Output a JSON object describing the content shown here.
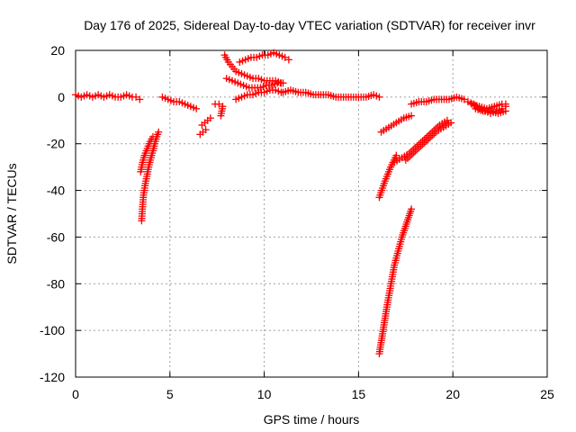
{
  "chart_data": {
    "type": "scatter",
    "title": "Day 176 of 2025, Sidereal Day-to-day VTEC variation (SDTVAR) for receiver invr",
    "xlabel": "GPS time / hours",
    "ylabel": "SDTVAR / TECUs",
    "xlim": [
      0,
      25
    ],
    "ylim": [
      -120,
      20
    ],
    "x_ticks": [
      0,
      5,
      10,
      15,
      20,
      25
    ],
    "x_tick_labels": [
      "0",
      "5",
      "10",
      "15",
      "20",
      "25"
    ],
    "y_ticks": [
      -120,
      -100,
      -80,
      -60,
      -40,
      -20,
      0,
      20
    ],
    "y_tick_labels": [
      "-120",
      "-100",
      "-80",
      "-60",
      "-40",
      "-20",
      "0",
      "20"
    ],
    "grid": true,
    "legend": "none",
    "marker": "plus",
    "color": "#ff0000",
    "series": [
      {
        "values": [
          [
            0.0,
            1
          ],
          [
            0.3,
            0
          ],
          [
            0.6,
            1
          ],
          [
            0.9,
            0
          ],
          [
            1.2,
            1
          ],
          [
            1.5,
            0
          ],
          [
            1.8,
            1
          ],
          [
            2.1,
            0
          ],
          [
            2.4,
            0
          ],
          [
            2.7,
            1
          ],
          [
            3.0,
            0
          ],
          [
            3.2,
            0
          ],
          [
            3.4,
            -1
          ]
        ]
      },
      {
        "values": [
          [
            3.5,
            -53
          ],
          [
            3.55,
            -47
          ],
          [
            3.6,
            -42
          ],
          [
            3.7,
            -37
          ],
          [
            3.8,
            -33
          ],
          [
            3.9,
            -29
          ],
          [
            4.0,
            -26
          ],
          [
            4.1,
            -23
          ],
          [
            4.2,
            -20
          ],
          [
            4.3,
            -17
          ],
          [
            4.4,
            -15
          ]
        ]
      },
      {
        "values": [
          [
            3.45,
            -32
          ],
          [
            3.55,
            -28
          ],
          [
            3.65,
            -25
          ],
          [
            3.8,
            -22
          ],
          [
            3.95,
            -19
          ],
          [
            4.1,
            -17
          ]
        ]
      },
      {
        "values": [
          [
            4.6,
            0
          ],
          [
            4.9,
            -1
          ],
          [
            5.2,
            -2
          ],
          [
            5.5,
            -2
          ],
          [
            5.8,
            -3
          ],
          [
            6.1,
            -4
          ],
          [
            6.4,
            -5
          ]
        ]
      },
      {
        "values": [
          [
            6.6,
            -16
          ],
          [
            6.75,
            -15
          ],
          [
            6.9,
            -14
          ]
        ]
      },
      {
        "values": [
          [
            6.7,
            -12
          ],
          [
            6.85,
            -11
          ],
          [
            7.0,
            -10
          ],
          [
            7.15,
            -9
          ]
        ]
      },
      {
        "values": [
          [
            7.4,
            -3
          ],
          [
            7.6,
            -3
          ],
          [
            7.8,
            -4
          ],
          [
            7.7,
            -8
          ]
        ]
      },
      {
        "values": [
          [
            7.9,
            18
          ],
          [
            8.1,
            15
          ],
          [
            8.3,
            13
          ],
          [
            8.5,
            11
          ],
          [
            8.8,
            10
          ],
          [
            9.1,
            9
          ],
          [
            9.4,
            8
          ],
          [
            9.7,
            8
          ],
          [
            10.0,
            7
          ],
          [
            10.3,
            7
          ],
          [
            10.6,
            7
          ],
          [
            10.9,
            6
          ]
        ]
      },
      {
        "values": [
          [
            8.0,
            8
          ],
          [
            8.3,
            7
          ],
          [
            8.6,
            6
          ],
          [
            8.9,
            5
          ],
          [
            9.2,
            4
          ],
          [
            9.5,
            4
          ],
          [
            9.8,
            4
          ],
          [
            10.1,
            5
          ],
          [
            10.4,
            5
          ],
          [
            10.7,
            6
          ],
          [
            11.0,
            6
          ]
        ]
      },
      {
        "values": [
          [
            8.5,
            -1
          ],
          [
            8.8,
            0
          ],
          [
            9.1,
            1
          ],
          [
            9.4,
            1
          ],
          [
            9.7,
            2
          ],
          [
            10.0,
            2
          ],
          [
            10.3,
            3
          ],
          [
            10.6,
            3
          ],
          [
            10.9,
            2
          ]
        ]
      },
      {
        "values": [
          [
            8.7,
            15
          ],
          [
            9.0,
            16
          ],
          [
            9.3,
            17
          ],
          [
            9.6,
            17
          ],
          [
            9.9,
            18
          ],
          [
            10.2,
            18
          ],
          [
            10.5,
            19
          ],
          [
            10.8,
            18
          ],
          [
            11.1,
            17
          ],
          [
            11.3,
            16
          ]
        ]
      },
      {
        "values": [
          [
            11.0,
            2
          ],
          [
            11.4,
            3
          ],
          [
            11.8,
            2
          ],
          [
            12.2,
            2
          ],
          [
            12.6,
            1
          ],
          [
            13.0,
            1
          ],
          [
            13.4,
            1
          ],
          [
            13.8,
            0
          ],
          [
            14.2,
            0
          ],
          [
            14.6,
            0
          ],
          [
            15.0,
            0
          ],
          [
            15.4,
            0
          ],
          [
            15.8,
            1
          ],
          [
            16.1,
            0
          ]
        ]
      },
      {
        "values": [
          [
            16.1,
            -43
          ],
          [
            16.4,
            -36
          ],
          [
            16.7,
            -30
          ],
          [
            17.0,
            -25
          ]
        ]
      },
      {
        "values": [
          [
            16.1,
            -110
          ],
          [
            16.5,
            -90
          ],
          [
            16.9,
            -72
          ],
          [
            17.3,
            -60
          ],
          [
            17.8,
            -48
          ]
        ]
      },
      {
        "values": [
          [
            16.2,
            -15
          ],
          [
            16.6,
            -13
          ],
          [
            17.0,
            -11
          ],
          [
            17.4,
            -9
          ],
          [
            17.8,
            -8
          ]
        ]
      },
      {
        "values": [
          [
            16.9,
            -28
          ],
          [
            17.3,
            -26
          ],
          [
            17.7,
            -24
          ],
          [
            18.1,
            -21
          ],
          [
            18.5,
            -18
          ],
          [
            18.9,
            -15
          ],
          [
            19.3,
            -12
          ],
          [
            19.7,
            -10
          ]
        ]
      },
      {
        "values": [
          [
            17.5,
            -27
          ],
          [
            17.9,
            -24
          ],
          [
            18.3,
            -21
          ],
          [
            18.7,
            -18
          ],
          [
            19.1,
            -15
          ],
          [
            19.5,
            -13
          ],
          [
            19.9,
            -11
          ]
        ]
      },
      {
        "values": [
          [
            17.8,
            -3
          ],
          [
            18.2,
            -2
          ],
          [
            18.6,
            -2
          ],
          [
            19.0,
            -1
          ],
          [
            19.4,
            -1
          ],
          [
            19.8,
            -1
          ],
          [
            20.2,
            0
          ],
          [
            20.6,
            -1
          ]
        ]
      },
      {
        "values": [
          [
            20.8,
            -2
          ],
          [
            21.1,
            -3
          ],
          [
            21.4,
            -5
          ],
          [
            21.7,
            -6
          ],
          [
            22.0,
            -7
          ],
          [
            22.3,
            -6
          ],
          [
            22.6,
            -5
          ],
          [
            22.8,
            -4
          ]
        ]
      },
      {
        "values": [
          [
            21.2,
            -5
          ],
          [
            21.6,
            -6
          ],
          [
            22.0,
            -6
          ],
          [
            22.4,
            -7
          ],
          [
            22.8,
            -6
          ]
        ]
      },
      {
        "values": [
          [
            21.0,
            -3
          ],
          [
            21.4,
            -4
          ],
          [
            21.8,
            -5
          ],
          [
            22.2,
            -4
          ],
          [
            22.6,
            -3
          ],
          [
            22.8,
            -3
          ]
        ]
      }
    ]
  }
}
